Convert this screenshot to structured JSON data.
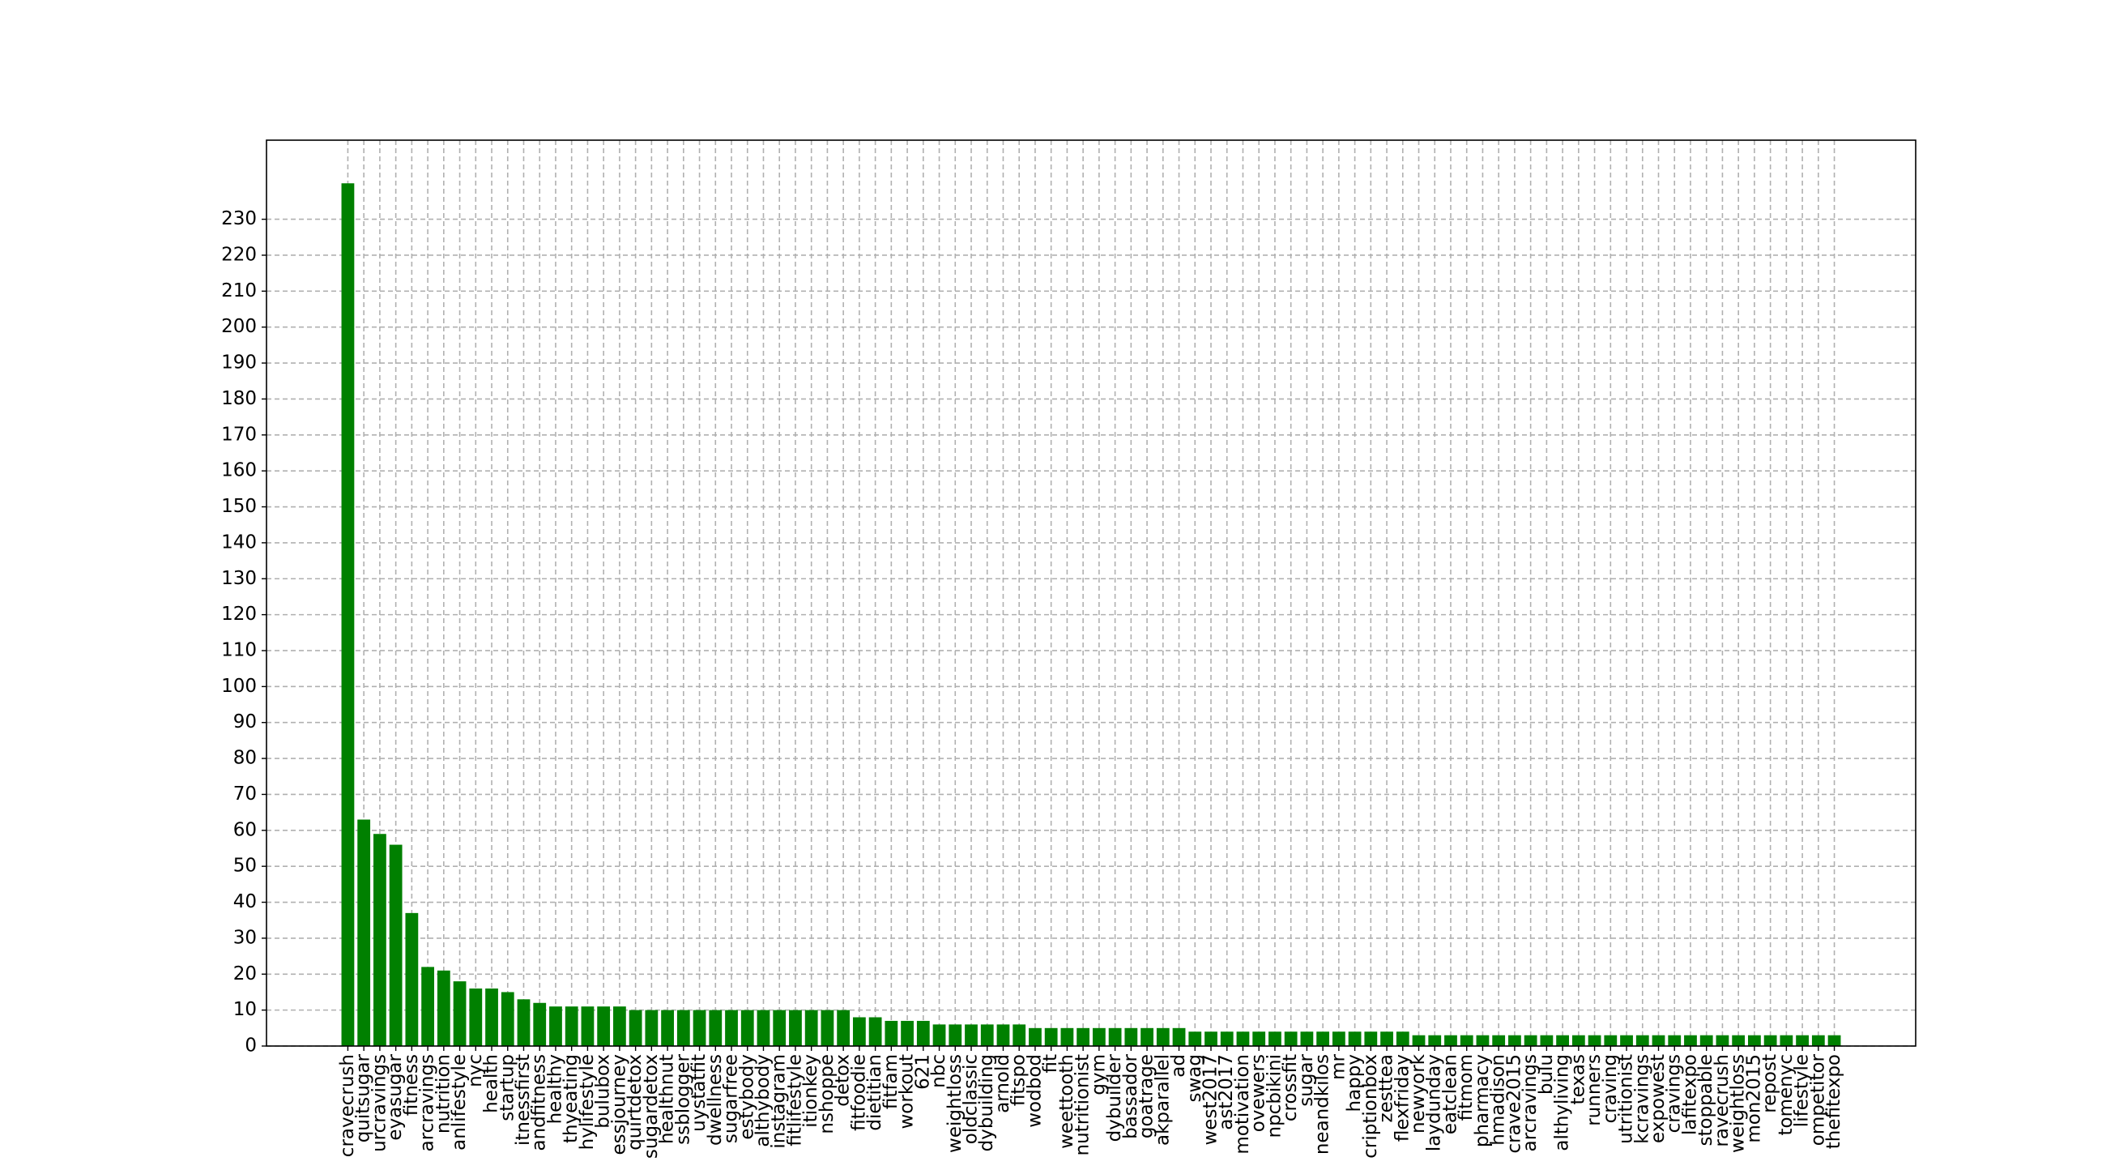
{
  "chart_data": {
    "type": "bar",
    "color": "#008000",
    "categories": [
      "cravecrush",
      "quitsugar",
      "urcravings",
      "eyasugar",
      "fitness",
      "arcravings",
      "nutrition",
      "anlifestyle",
      "nyc",
      "health",
      "startup",
      "itnessfirst",
      "andfitness",
      "healthy",
      "thyeating",
      "hylifestyle",
      "bulubox",
      "essjourney",
      "quirtdetox",
      "sugardetox",
      "healthnut",
      "ssblogger",
      "uystatfit",
      "dwellness",
      "sugarfree",
      "estybody",
      "althybody",
      "instagram",
      "fitlifestyle",
      "itionkey",
      "nshoppe",
      "detox",
      "fitfoodie",
      "dietitian",
      "fitfam",
      "workout",
      "621",
      "nbc",
      "weightloss",
      "oldclassic",
      "dybuilding",
      "arnold",
      "fitspo",
      "wodbod",
      "fit",
      "weettooth",
      "nutritionist",
      "gym",
      "dybuilder",
      "bassador",
      "goatrage",
      "akparallel",
      "ad",
      "swag",
      "west2017",
      "ast2017",
      "motivation",
      "ovewers",
      "npcbikini",
      "crossfit",
      "sugar",
      "neandkilos",
      "mr",
      "happy",
      "criptionbox",
      "zesttea",
      "flexfriday",
      "newyork",
      "laydunday",
      "eatclean",
      "fitmom",
      "pharmacy",
      "hmadison",
      "crave2015",
      "arcravings",
      "bulu",
      "althyliving",
      "texas",
      "runners",
      "craving",
      "utritionist",
      "kcravings",
      "expowest",
      "cravings",
      "lafitexpo",
      "stoppable",
      "ravecrush",
      "weightloss",
      "mon2015",
      "repost",
      "tomenyc",
      "lifestyle",
      "ompetitor",
      "thefitexpo"
    ],
    "values": [
      240,
      63,
      59,
      56,
      37,
      22,
      21,
      18,
      16,
      16,
      15,
      13,
      12,
      11,
      11,
      11,
      11,
      11,
      10,
      10,
      10,
      10,
      10,
      10,
      10,
      10,
      10,
      10,
      10,
      10,
      10,
      10,
      8,
      8,
      7,
      7,
      7,
      6,
      6,
      6,
      6,
      6,
      6,
      5,
      5,
      5,
      5,
      5,
      5,
      5,
      5,
      5,
      5,
      4,
      4,
      4,
      4,
      4,
      4,
      4,
      4,
      4,
      4,
      4,
      4,
      4,
      4,
      3,
      3,
      3,
      3,
      3,
      3,
      3,
      3,
      3,
      3,
      3,
      3,
      3,
      3,
      3,
      3,
      3,
      3,
      3,
      3,
      3,
      3,
      3,
      3,
      3,
      3,
      3
    ],
    "ylim": [
      0,
      252
    ],
    "yticks": [
      0,
      10,
      20,
      30,
      40,
      50,
      60,
      70,
      80,
      90,
      100,
      110,
      120,
      130,
      140,
      150,
      160,
      170,
      180,
      190,
      200,
      210,
      220,
      230
    ],
    "grid": true
  }
}
